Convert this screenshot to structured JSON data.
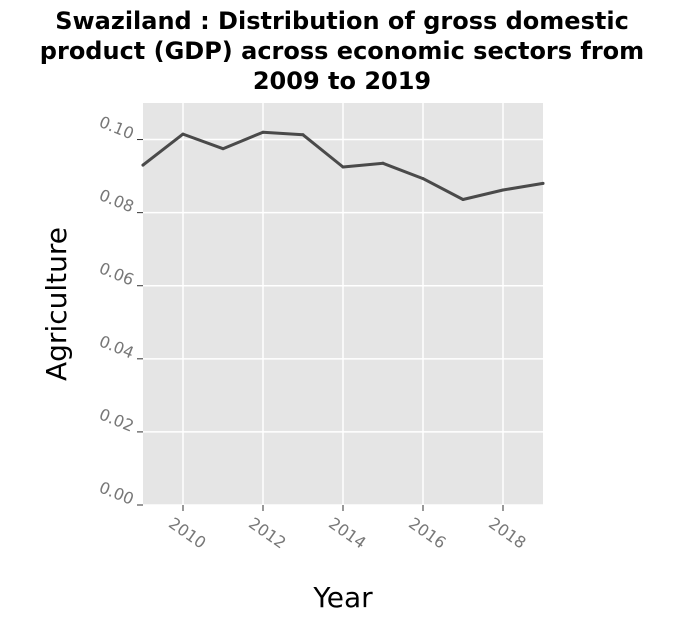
{
  "chart_data": {
    "type": "line",
    "title": "Swaziland : Distribution of gross domestic\nproduct (GDP) across economic sectors from\n2009 to 2019",
    "xlabel": "Year",
    "ylabel": "Agriculture",
    "xlim": [
      2009,
      2019
    ],
    "ylim": [
      0,
      0.11
    ],
    "x_ticks": [
      2010,
      2012,
      2014,
      2016,
      2018
    ],
    "y_ticks": [
      0.0,
      0.02,
      0.04,
      0.06,
      0.08,
      0.1
    ],
    "y_tick_labels": [
      "0.00",
      "0.02",
      "0.04",
      "0.06",
      "0.08",
      "0.10"
    ],
    "grid": true,
    "background": "#e5e5e5",
    "line_color": "#4a4a4a",
    "series": [
      {
        "x": [
          2009,
          2010,
          2011,
          2012,
          2013,
          2014,
          2015,
          2016,
          2017,
          2018,
          2019
        ],
        "values": [
          0.093,
          0.1015,
          0.0975,
          0.102,
          0.1013,
          0.0925,
          0.0935,
          0.0893,
          0.0836,
          0.0862,
          0.088
        ]
      }
    ]
  }
}
